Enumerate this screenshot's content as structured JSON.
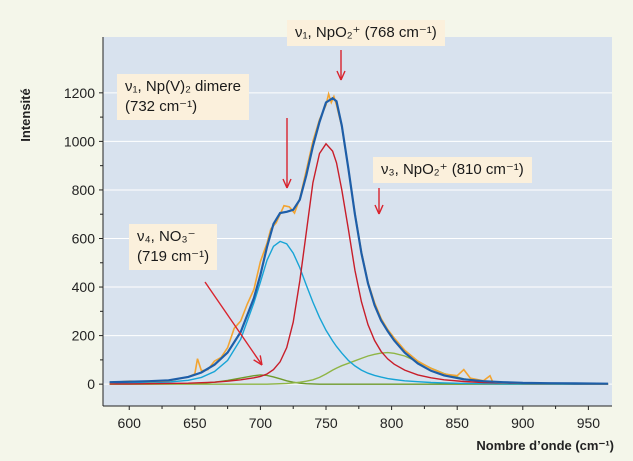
{
  "colors": {
    "plot_bg": "#d8e2ee",
    "page_bg": "#f4f6ea",
    "grid": "#ffffff",
    "experimental": "#f2a431",
    "fit_total": "#1e5ea8",
    "nu4_component": "#6f9b2b",
    "nu1_dimer_component": "#17a4d6",
    "nu1_npo2_component": "#c81e2a",
    "nu3_component": "#8fb545",
    "arrow": "#d9232d",
    "annotation_bg": "#fbf0dc"
  },
  "chart_data": {
    "type": "line",
    "title": "",
    "xlabel": "Nombre d’onde (cm⁻¹)",
    "ylabel": "Intensité",
    "xlim": [
      580,
      968
    ],
    "ylim": [
      -90,
      1430
    ],
    "x_ticks": [
      600,
      650,
      700,
      750,
      800,
      850,
      900,
      950
    ],
    "y_ticks": [
      0,
      200,
      400,
      600,
      800,
      1000,
      1200
    ],
    "grid": "horizontal",
    "x": [
      585,
      600,
      615,
      630,
      645,
      655,
      665,
      675,
      685,
      695,
      700,
      705,
      710,
      715,
      720,
      725,
      730,
      735,
      740,
      745,
      750,
      755,
      758,
      762,
      767,
      772,
      777,
      782,
      787,
      792,
      797,
      802,
      810,
      820,
      830,
      840,
      855,
      870,
      885,
      900,
      920,
      940,
      965
    ],
    "series": [
      {
        "key": "total",
        "values": [
          8,
          10,
          12,
          16,
          30,
          48,
          80,
          130,
          215,
          355,
          450,
          565,
          660,
          705,
          710,
          718,
          760,
          860,
          980,
          1080,
          1160,
          1178,
          1165,
          1065,
          890,
          700,
          540,
          415,
          325,
          262,
          218,
          180,
          130,
          85,
          55,
          36,
          20,
          12,
          8,
          5,
          4,
          3,
          2
        ]
      },
      {
        "key": "nu4",
        "values": [
          0,
          0,
          0,
          1,
          2,
          4,
          8,
          15,
          25,
          35,
          38,
          36,
          30,
          22,
          14,
          8,
          4,
          2,
          1,
          0,
          0,
          0,
          0,
          0,
          0,
          0,
          0,
          0,
          0,
          0,
          0,
          0,
          0,
          0,
          0,
          0,
          0,
          0,
          0,
          0,
          0,
          0,
          0
        ]
      },
      {
        "key": "nu1_dimer",
        "values": [
          4,
          5,
          6,
          9,
          16,
          28,
          52,
          98,
          185,
          335,
          420,
          510,
          568,
          588,
          578,
          540,
          480,
          408,
          338,
          275,
          222,
          178,
          155,
          128,
          98,
          75,
          58,
          45,
          36,
          29,
          23,
          19,
          14,
          10,
          7,
          5,
          3,
          2,
          1,
          1,
          0,
          0,
          0
        ]
      },
      {
        "key": "nu1_npo2",
        "values": [
          1,
          1,
          2,
          3,
          4,
          6,
          8,
          12,
          18,
          26,
          32,
          42,
          60,
          92,
          150,
          255,
          425,
          625,
          830,
          950,
          990,
          960,
          912,
          800,
          640,
          470,
          340,
          245,
          180,
          135,
          104,
          82,
          58,
          38,
          26,
          18,
          11,
          7,
          5,
          3,
          2,
          1,
          1
        ]
      },
      {
        "key": "nu3",
        "values": [
          0,
          0,
          0,
          0,
          0,
          0,
          0,
          0,
          0,
          0,
          0,
          0,
          1,
          2,
          3,
          5,
          8,
          12,
          18,
          28,
          42,
          58,
          66,
          76,
          86,
          96,
          106,
          116,
          123,
          128,
          130,
          127,
          116,
          92,
          66,
          44,
          22,
          10,
          4,
          2,
          1,
          0,
          0
        ]
      }
    ],
    "experimental": {
      "key": "experimental",
      "x": [
        585,
        600,
        615,
        630,
        645,
        650,
        652,
        655,
        660,
        665,
        670,
        675,
        680,
        685,
        690,
        695,
        700,
        705,
        708,
        712,
        715,
        718,
        722,
        726,
        730,
        735,
        740,
        745,
        750,
        752,
        754,
        756,
        758,
        762,
        767,
        772,
        777,
        782,
        787,
        792,
        797,
        802,
        810,
        820,
        830,
        840,
        850,
        855,
        860,
        870,
        875,
        877,
        880,
        890,
        900,
        920,
        940,
        965
      ],
      "y": [
        6,
        12,
        10,
        14,
        30,
        42,
        105,
        55,
        60,
        95,
        110,
        150,
        230,
        260,
        330,
        390,
        505,
        580,
        640,
        665,
        700,
        735,
        730,
        705,
        765,
        880,
        1000,
        1090,
        1150,
        1195,
        1160,
        1185,
        1150,
        1060,
        890,
        705,
        545,
        420,
        335,
        270,
        225,
        190,
        140,
        95,
        65,
        42,
        35,
        60,
        25,
        14,
        35,
        10,
        8,
        6,
        4,
        3,
        2,
        1
      ]
    }
  },
  "annotations": {
    "a1": {
      "line1": "ν₁, NpO₂⁺ (768 cm⁻¹)"
    },
    "a2": {
      "line1": "ν₁, Np(V)₂ dimere",
      "line2": "(732 cm⁻¹)"
    },
    "a3": {
      "line1": "ν₃, NpO₂⁺ (810 cm⁻¹)"
    },
    "a4": {
      "line1": "ν₄, NO₃⁻",
      "line2": "(719 cm⁻¹)"
    }
  }
}
